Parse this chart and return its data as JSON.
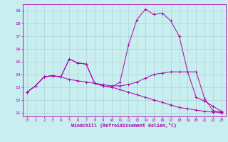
{
  "xlabel": "Windchill (Refroidissement éolien,°C)",
  "xlim": [
    -0.5,
    23.5
  ],
  "ylim": [
    10.7,
    19.5
  ],
  "yticks": [
    11,
    12,
    13,
    14,
    15,
    16,
    17,
    18,
    19
  ],
  "xticks": [
    0,
    1,
    2,
    3,
    4,
    5,
    6,
    7,
    8,
    9,
    10,
    11,
    12,
    13,
    14,
    15,
    16,
    17,
    18,
    19,
    20,
    21,
    22,
    23
  ],
  "bg_color": "#c8eef0",
  "line_color": "#aa00aa",
  "grid_color": "#aacccc",
  "line1_x": [
    0,
    1,
    2,
    3,
    4,
    5,
    6,
    7,
    8,
    9,
    10,
    11,
    12,
    13,
    14,
    15,
    16,
    17,
    18,
    19,
    20,
    21,
    22,
    23
  ],
  "line1_y": [
    12.6,
    13.1,
    13.8,
    13.9,
    13.8,
    15.2,
    14.9,
    14.8,
    13.3,
    13.1,
    13.0,
    12.8,
    12.6,
    12.4,
    12.2,
    12.0,
    11.8,
    11.6,
    11.4,
    11.3,
    11.2,
    11.1,
    11.05,
    11.0
  ],
  "line2_x": [
    0,
    1,
    2,
    3,
    4,
    5,
    6,
    7,
    8,
    9,
    10,
    11,
    12,
    13,
    14,
    15,
    16,
    17,
    18,
    19,
    20,
    21,
    22,
    23
  ],
  "line2_y": [
    12.6,
    13.1,
    13.8,
    13.9,
    13.8,
    15.2,
    14.9,
    14.8,
    13.3,
    13.1,
    13.0,
    13.4,
    16.3,
    18.3,
    19.1,
    18.7,
    18.8,
    18.2,
    17.0,
    14.2,
    14.2,
    12.1,
    11.15,
    11.05
  ],
  "line3_x": [
    0,
    1,
    2,
    3,
    4,
    5,
    6,
    7,
    8,
    9,
    10,
    11,
    12,
    13,
    14,
    15,
    16,
    17,
    18,
    19,
    20,
    21,
    22,
    23
  ],
  "line3_y": [
    12.6,
    13.1,
    13.8,
    13.9,
    13.8,
    13.6,
    13.5,
    13.4,
    13.3,
    13.2,
    13.1,
    13.1,
    13.2,
    13.4,
    13.7,
    14.0,
    14.1,
    14.2,
    14.2,
    14.2,
    12.2,
    11.9,
    11.5,
    11.1
  ]
}
